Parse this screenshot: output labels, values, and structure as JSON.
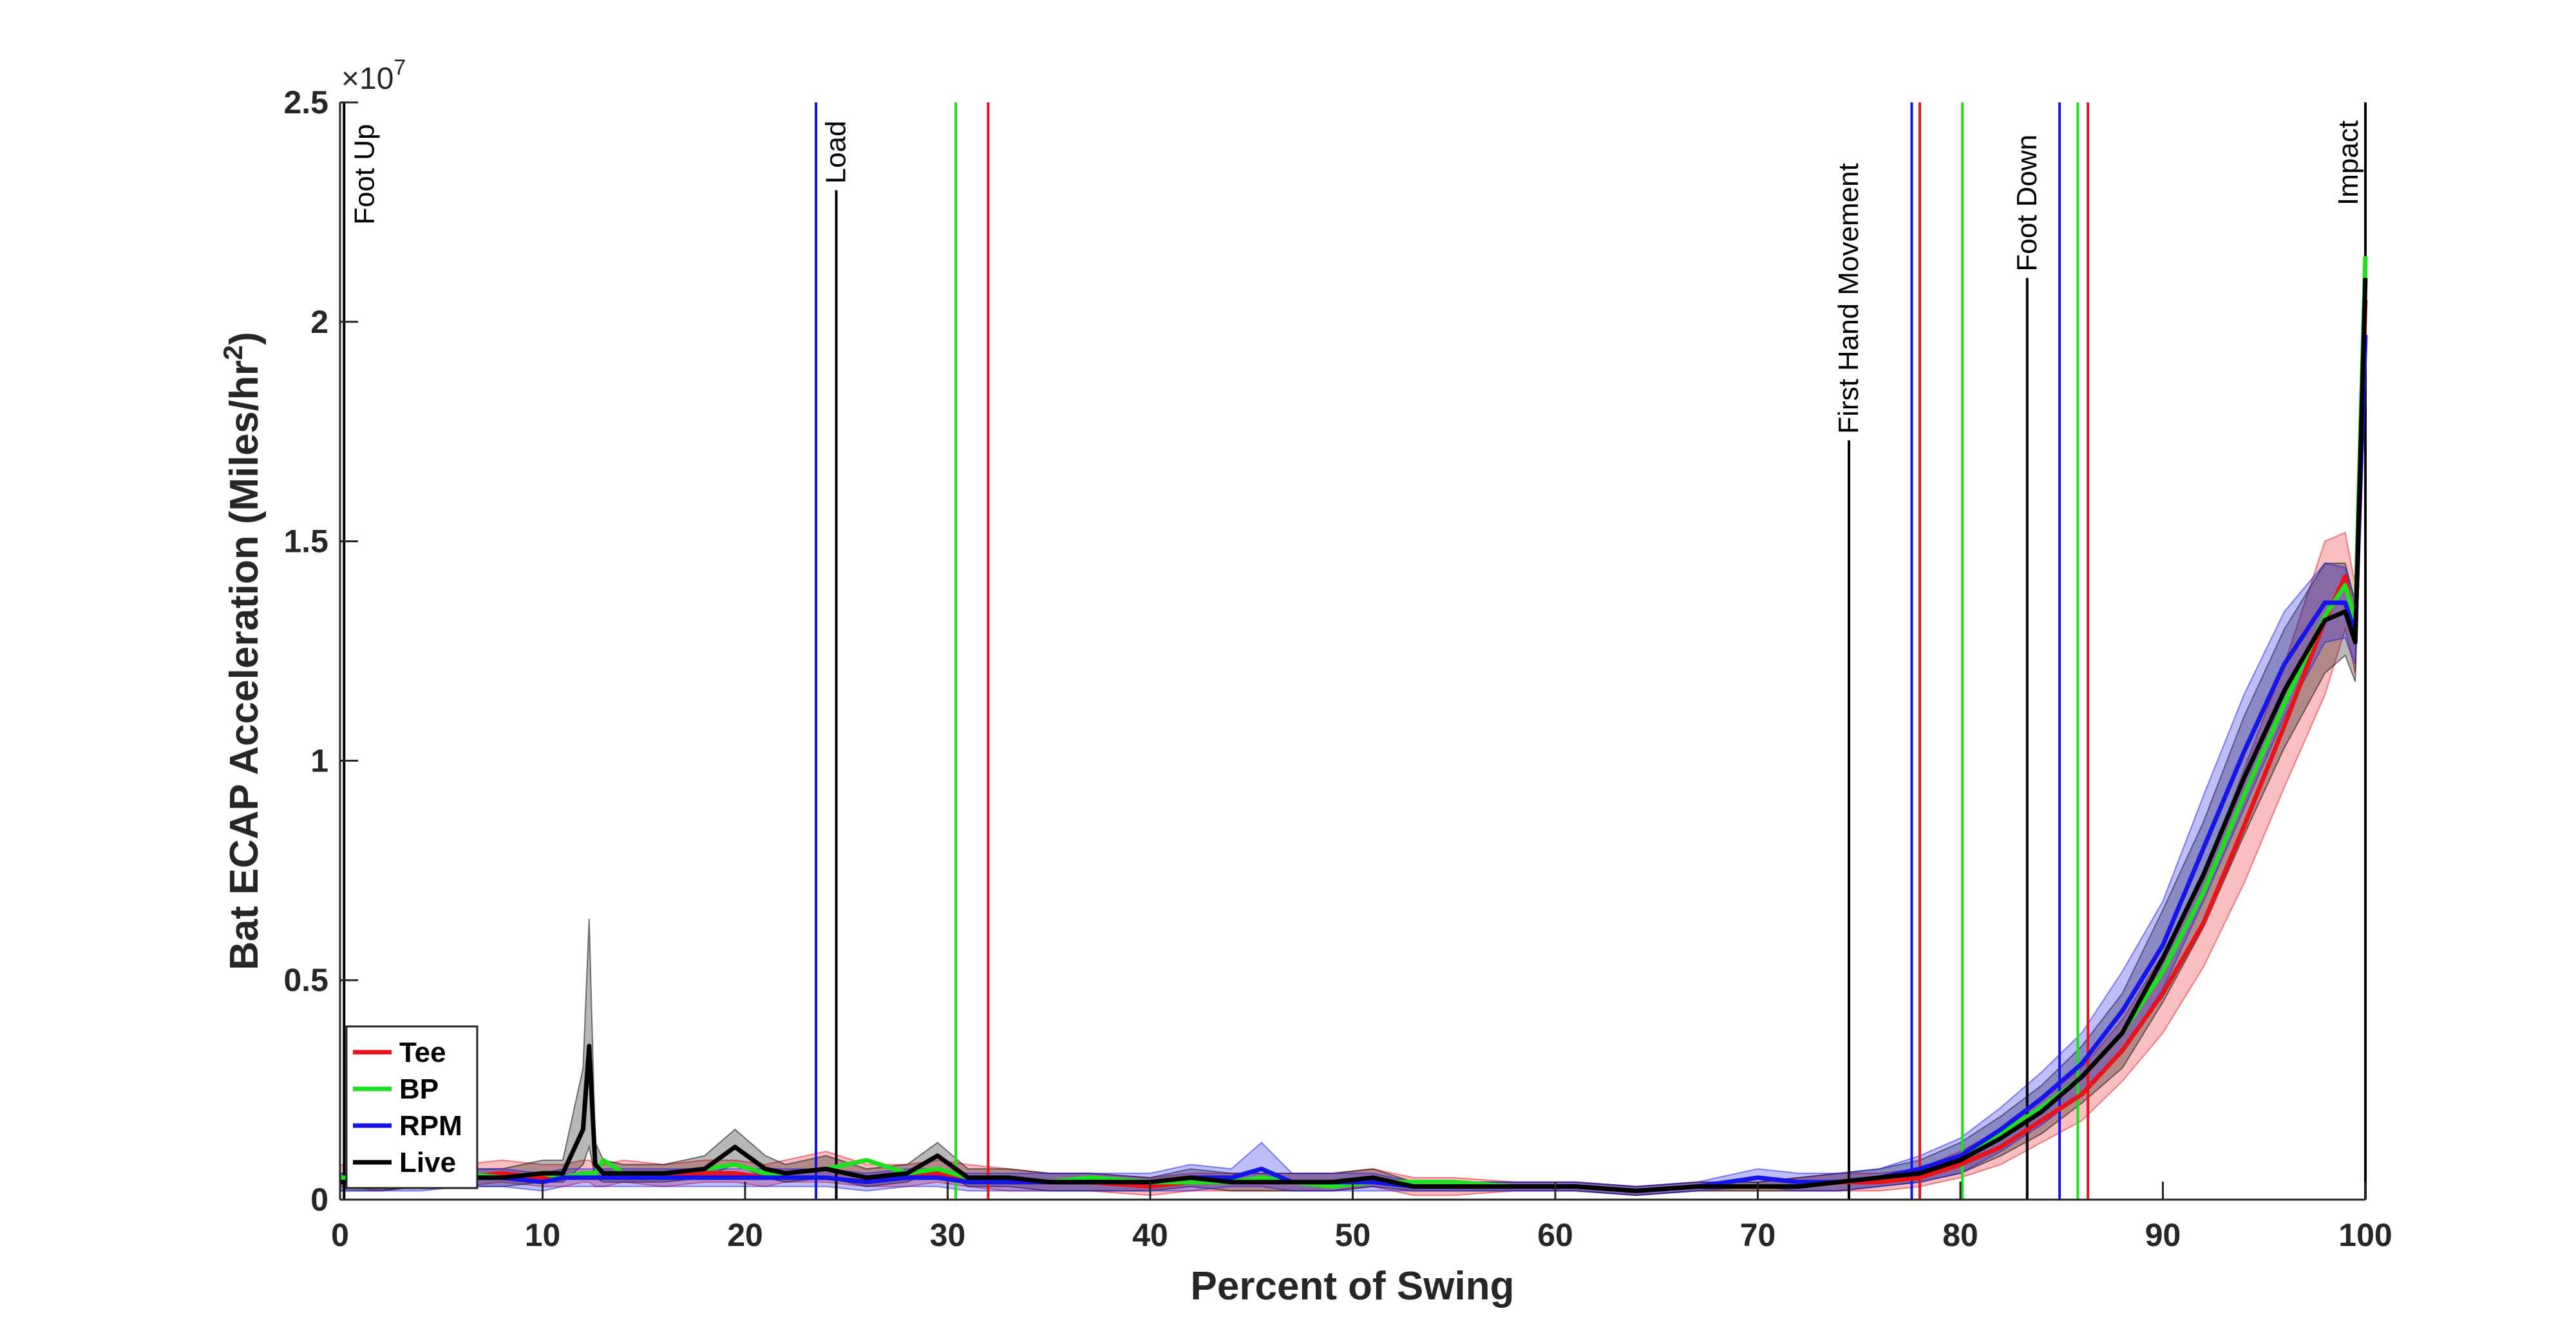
{
  "chart_data": {
    "type": "line",
    "title": "",
    "xlabel": "Percent of Swing",
    "ylabel_main": "Bat ECAP Acceleration (Miles/hr",
    "ylabel_sup": "2",
    "ylabel_close": ")",
    "xlim": [
      0,
      100
    ],
    "ylim": [
      0,
      2.5
    ],
    "y_multiplier": "10",
    "y_multiplier_exp": "7",
    "y_multiplier_prefix": "×",
    "xticks": [
      0,
      10,
      20,
      30,
      40,
      50,
      60,
      70,
      80,
      90,
      100
    ],
    "xtick_labels": [
      "0",
      "10",
      "20",
      "30",
      "40",
      "50",
      "60",
      "70",
      "80",
      "90",
      "100"
    ],
    "yticks": [
      0,
      0.5,
      1,
      1.5,
      2,
      2.5
    ],
    "ytick_labels": [
      "0",
      "0.5",
      "1",
      "1.5",
      "2",
      "2.5"
    ],
    "grid": false,
    "legend_position": "bottom-left",
    "x": [
      0,
      2,
      4,
      6,
      8,
      10,
      11,
      12,
      12.3,
      12.6,
      13,
      14,
      16,
      18,
      19.5,
      21,
      22,
      24,
      26,
      28,
      29.5,
      31,
      33,
      35,
      37,
      40,
      42,
      44,
      45.5,
      47,
      49,
      51,
      53,
      55,
      58,
      61,
      64,
      67,
      70,
      72,
      74,
      76,
      78,
      80,
      82,
      84,
      86,
      88,
      90,
      92,
      94,
      96,
      98,
      99,
      99.5,
      100
    ],
    "series": [
      {
        "name": "Tee",
        "color": "#e8141c",
        "values": [
          0.05,
          0.04,
          0.05,
          0.05,
          0.06,
          0.05,
          0.05,
          0.06,
          0.06,
          0.05,
          0.05,
          0.06,
          0.05,
          0.06,
          0.06,
          0.05,
          0.06,
          0.07,
          0.05,
          0.05,
          0.06,
          0.05,
          0.04,
          0.04,
          0.04,
          0.03,
          0.04,
          0.04,
          0.04,
          0.04,
          0.04,
          0.05,
          0.03,
          0.03,
          0.03,
          0.03,
          0.02,
          0.03,
          0.03,
          0.03,
          0.04,
          0.04,
          0.05,
          0.08,
          0.12,
          0.18,
          0.24,
          0.34,
          0.47,
          0.63,
          0.85,
          1.08,
          1.32,
          1.42,
          1.3,
          2.05
        ]
      },
      {
        "name": "BP",
        "color": "#1ee01e",
        "values": [
          0.05,
          0.05,
          0.05,
          0.06,
          0.05,
          0.06,
          0.05,
          0.06,
          0.06,
          0.06,
          0.09,
          0.06,
          0.06,
          0.07,
          0.08,
          0.06,
          0.06,
          0.07,
          0.09,
          0.06,
          0.07,
          0.05,
          0.05,
          0.04,
          0.05,
          0.04,
          0.04,
          0.04,
          0.05,
          0.04,
          0.03,
          0.04,
          0.04,
          0.04,
          0.03,
          0.03,
          0.02,
          0.03,
          0.03,
          0.03,
          0.04,
          0.05,
          0.06,
          0.1,
          0.15,
          0.21,
          0.28,
          0.38,
          0.52,
          0.7,
          0.92,
          1.13,
          1.33,
          1.4,
          1.32,
          2.15
        ]
      },
      {
        "name": "RPM",
        "color": "#1515e8",
        "values": [
          0.04,
          0.04,
          0.04,
          0.05,
          0.05,
          0.04,
          0.05,
          0.05,
          0.05,
          0.05,
          0.05,
          0.05,
          0.05,
          0.05,
          0.05,
          0.05,
          0.05,
          0.05,
          0.04,
          0.05,
          0.05,
          0.04,
          0.04,
          0.04,
          0.04,
          0.04,
          0.05,
          0.05,
          0.07,
          0.04,
          0.04,
          0.04,
          0.03,
          0.03,
          0.03,
          0.03,
          0.02,
          0.03,
          0.05,
          0.04,
          0.04,
          0.05,
          0.07,
          0.1,
          0.16,
          0.23,
          0.31,
          0.43,
          0.58,
          0.8,
          1.02,
          1.22,
          1.36,
          1.36,
          1.29,
          1.97
        ]
      },
      {
        "name": "Live",
        "color": "#000000",
        "values": [
          0.04,
          0.04,
          0.05,
          0.05,
          0.05,
          0.06,
          0.06,
          0.16,
          0.35,
          0.08,
          0.06,
          0.06,
          0.06,
          0.07,
          0.12,
          0.07,
          0.06,
          0.07,
          0.05,
          0.06,
          0.1,
          0.05,
          0.05,
          0.04,
          0.04,
          0.04,
          0.05,
          0.04,
          0.04,
          0.04,
          0.04,
          0.05,
          0.03,
          0.03,
          0.03,
          0.03,
          0.02,
          0.03,
          0.03,
          0.03,
          0.04,
          0.05,
          0.06,
          0.09,
          0.14,
          0.2,
          0.28,
          0.38,
          0.55,
          0.74,
          0.96,
          1.16,
          1.32,
          1.34,
          1.27,
          2.1
        ]
      }
    ],
    "band_series": [
      {
        "name": "Tee",
        "color": "#e8141c",
        "upper": [
          0.08,
          0.07,
          0.08,
          0.08,
          0.09,
          0.08,
          0.08,
          0.09,
          0.09,
          0.08,
          0.08,
          0.09,
          0.08,
          0.09,
          0.09,
          0.08,
          0.09,
          0.11,
          0.08,
          0.08,
          0.09,
          0.08,
          0.07,
          0.06,
          0.06,
          0.05,
          0.06,
          0.06,
          0.06,
          0.06,
          0.06,
          0.07,
          0.05,
          0.05,
          0.04,
          0.04,
          0.03,
          0.04,
          0.04,
          0.05,
          0.06,
          0.06,
          0.07,
          0.11,
          0.16,
          0.23,
          0.3,
          0.41,
          0.56,
          0.73,
          0.98,
          1.22,
          1.5,
          1.52,
          1.4,
          2.15
        ],
        "lower": [
          0.03,
          0.02,
          0.03,
          0.03,
          0.04,
          0.03,
          0.03,
          0.04,
          0.04,
          0.03,
          0.03,
          0.04,
          0.03,
          0.04,
          0.04,
          0.03,
          0.04,
          0.04,
          0.03,
          0.03,
          0.04,
          0.03,
          0.02,
          0.02,
          0.02,
          0.01,
          0.02,
          0.02,
          0.02,
          0.02,
          0.02,
          0.03,
          0.01,
          0.01,
          0.02,
          0.02,
          0.01,
          0.02,
          0.02,
          0.02,
          0.02,
          0.02,
          0.03,
          0.05,
          0.08,
          0.13,
          0.18,
          0.27,
          0.38,
          0.53,
          0.72,
          0.94,
          1.15,
          1.3,
          1.2,
          1.95
        ]
      },
      {
        "name": "Live",
        "color": "#000000",
        "upper": [
          0.06,
          0.06,
          0.07,
          0.07,
          0.07,
          0.09,
          0.09,
          0.3,
          0.64,
          0.13,
          0.09,
          0.08,
          0.08,
          0.1,
          0.16,
          0.1,
          0.08,
          0.1,
          0.07,
          0.08,
          0.13,
          0.07,
          0.07,
          0.06,
          0.06,
          0.05,
          0.07,
          0.06,
          0.06,
          0.06,
          0.06,
          0.07,
          0.04,
          0.04,
          0.04,
          0.04,
          0.03,
          0.04,
          0.04,
          0.05,
          0.06,
          0.07,
          0.09,
          0.13,
          0.19,
          0.26,
          0.35,
          0.47,
          0.66,
          0.86,
          1.1,
          1.3,
          1.45,
          1.45,
          1.36,
          2.12
        ],
        "lower": [
          0.02,
          0.02,
          0.03,
          0.03,
          0.03,
          0.04,
          0.04,
          0.08,
          0.12,
          0.05,
          0.04,
          0.04,
          0.04,
          0.05,
          0.08,
          0.05,
          0.04,
          0.05,
          0.03,
          0.04,
          0.07,
          0.03,
          0.03,
          0.02,
          0.02,
          0.02,
          0.03,
          0.02,
          0.02,
          0.02,
          0.02,
          0.03,
          0.02,
          0.02,
          0.02,
          0.02,
          0.01,
          0.02,
          0.02,
          0.02,
          0.02,
          0.03,
          0.04,
          0.06,
          0.1,
          0.15,
          0.22,
          0.3,
          0.45,
          0.62,
          0.83,
          1.03,
          1.2,
          1.24,
          1.18,
          2.05
        ]
      },
      {
        "name": "RPM",
        "color": "#1515e8",
        "upper": [
          0.06,
          0.06,
          0.06,
          0.07,
          0.07,
          0.06,
          0.07,
          0.07,
          0.07,
          0.07,
          0.07,
          0.07,
          0.07,
          0.07,
          0.07,
          0.07,
          0.07,
          0.07,
          0.06,
          0.07,
          0.07,
          0.06,
          0.06,
          0.06,
          0.06,
          0.06,
          0.08,
          0.07,
          0.13,
          0.06,
          0.06,
          0.06,
          0.04,
          0.04,
          0.04,
          0.04,
          0.03,
          0.04,
          0.07,
          0.06,
          0.06,
          0.07,
          0.1,
          0.14,
          0.21,
          0.29,
          0.38,
          0.52,
          0.68,
          0.92,
          1.15,
          1.34,
          1.45,
          1.44,
          1.36,
          2.0
        ],
        "lower": [
          0.02,
          0.02,
          0.02,
          0.03,
          0.03,
          0.02,
          0.03,
          0.03,
          0.03,
          0.03,
          0.03,
          0.03,
          0.03,
          0.03,
          0.03,
          0.03,
          0.03,
          0.03,
          0.02,
          0.03,
          0.03,
          0.02,
          0.02,
          0.02,
          0.02,
          0.02,
          0.02,
          0.03,
          0.03,
          0.02,
          0.02,
          0.02,
          0.02,
          0.02,
          0.02,
          0.02,
          0.01,
          0.02,
          0.03,
          0.02,
          0.02,
          0.03,
          0.04,
          0.06,
          0.11,
          0.17,
          0.24,
          0.34,
          0.48,
          0.68,
          0.89,
          1.1,
          1.27,
          1.28,
          1.22,
          1.94
        ]
      }
    ],
    "events": [
      {
        "label": "Foot Up",
        "x": 0.2,
        "color": "#000000",
        "labeled": true,
        "label_from": 2.5
      },
      {
        "label": "Load",
        "x": 24.5,
        "color": "#000000",
        "labeled": true,
        "label_from": 2.3
      },
      {
        "label": "First Hand Movement",
        "x": 74.5,
        "color": "#000000",
        "labeled": true,
        "label_from": 1.73
      },
      {
        "label": "Foot Down",
        "x": 83.3,
        "color": "#000000",
        "labeled": true,
        "label_from": 2.1
      },
      {
        "label": "Impact",
        "x": 100,
        "color": "#000000",
        "labeled": true,
        "label_from": 2.5
      },
      {
        "label": "",
        "x": 23.5,
        "color": "#1515e8",
        "labeled": false
      },
      {
        "label": "",
        "x": 30.4,
        "color": "#1ee01e",
        "labeled": false
      },
      {
        "label": "",
        "x": 32.0,
        "color": "#e8141c",
        "labeled": false
      },
      {
        "label": "",
        "x": 77.6,
        "color": "#1515e8",
        "labeled": false
      },
      {
        "label": "",
        "x": 78.0,
        "color": "#e8141c",
        "labeled": false
      },
      {
        "label": "",
        "x": 80.1,
        "color": "#1ee01e",
        "labeled": false
      },
      {
        "label": "",
        "x": 84.9,
        "color": "#1515e8",
        "labeled": false
      },
      {
        "label": "",
        "x": 85.8,
        "color": "#1ee01e",
        "labeled": false
      },
      {
        "label": "",
        "x": 86.3,
        "color": "#e8141c",
        "labeled": false
      }
    ]
  }
}
